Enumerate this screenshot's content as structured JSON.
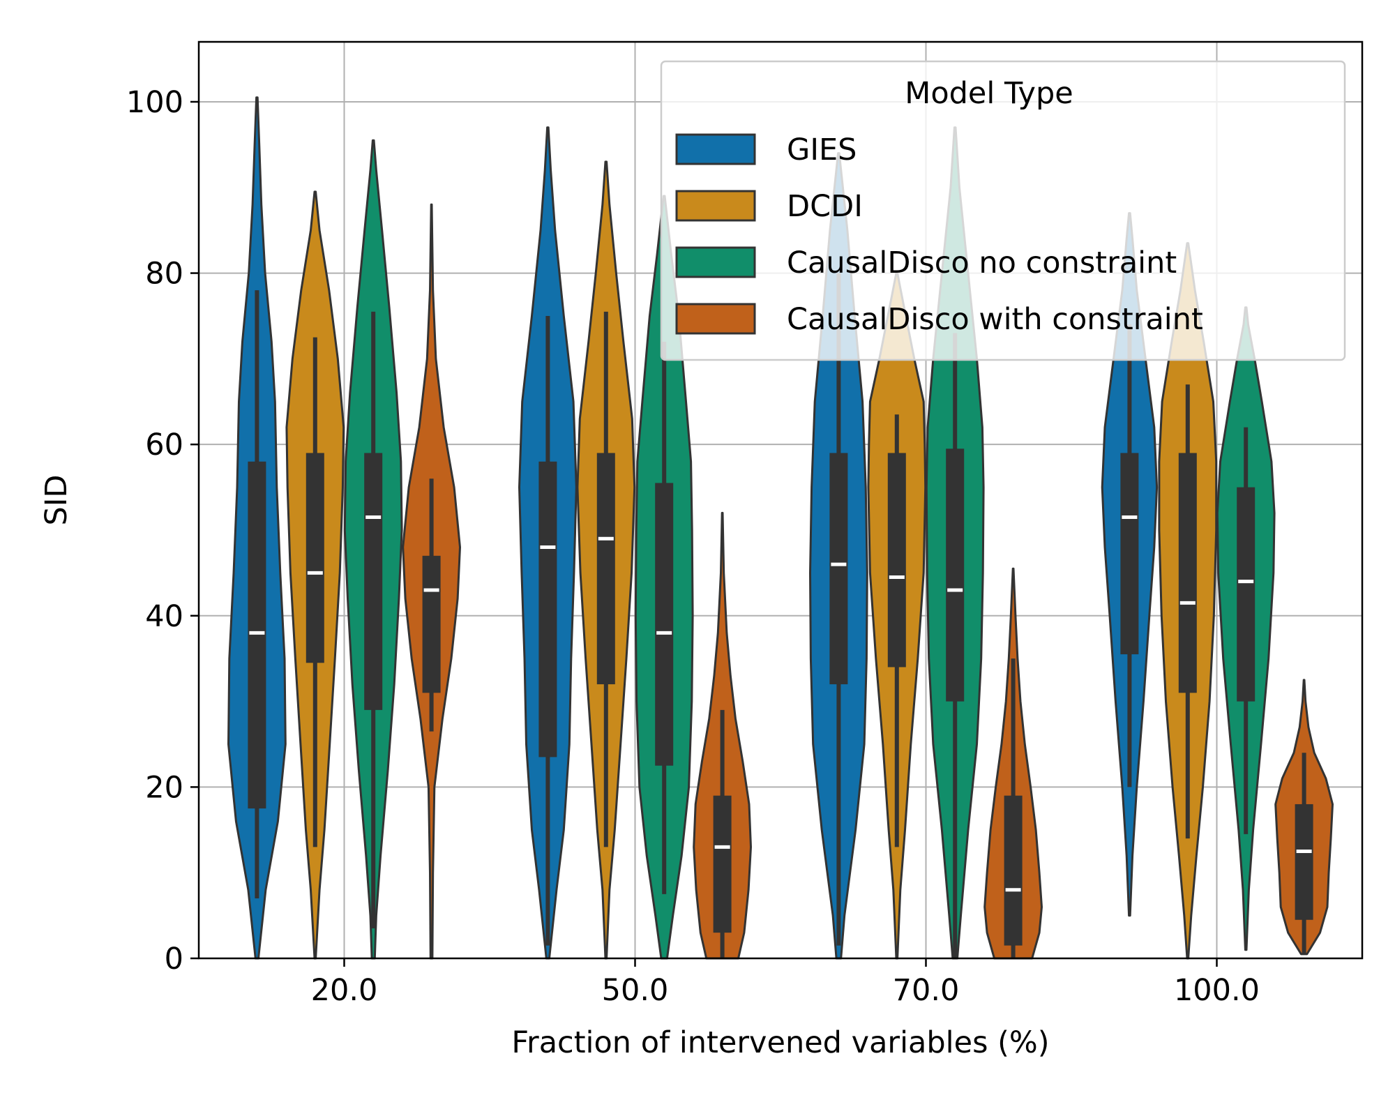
{
  "chart_data": {
    "type": "violin",
    "title": "",
    "xlabel": "Fraction of intervened variables (%)",
    "ylabel": "SID",
    "categories": [
      "20.0",
      "50.0",
      "70.0",
      "100.0"
    ],
    "ylim": [
      0,
      107
    ],
    "yticks": [
      0,
      20,
      40,
      60,
      80,
      100
    ],
    "grid": true,
    "legend": {
      "title": "Model Type",
      "placement": "top-right"
    },
    "series": [
      {
        "name": "GIES",
        "color": "#1170aa",
        "groups": [
          {
            "category": "20.0",
            "q1": 17.5,
            "median": 38,
            "q3": 58,
            "whisker_low": 7,
            "whisker_high": 78,
            "min": 0,
            "max": 100.5,
            "profile": [
              [
                0,
                0.05
              ],
              [
                8,
                0.3
              ],
              [
                16,
                0.72
              ],
              [
                25,
                0.98
              ],
              [
                35,
                0.95
              ],
              [
                45,
                0.8
              ],
              [
                55,
                0.68
              ],
              [
                65,
                0.62
              ],
              [
                72,
                0.5
              ],
              [
                80,
                0.28
              ],
              [
                88,
                0.15
              ],
              [
                95,
                0.08
              ],
              [
                100.5,
                0.02
              ]
            ]
          },
          {
            "category": "50.0",
            "q1": 23.5,
            "median": 48,
            "q3": 58,
            "whisker_low": 1.5,
            "whisker_high": 75,
            "min": 0,
            "max": 97,
            "profile": [
              [
                0,
                0.05
              ],
              [
                8,
                0.3
              ],
              [
                15,
                0.55
              ],
              [
                25,
                0.74
              ],
              [
                35,
                0.8
              ],
              [
                45,
                0.9
              ],
              [
                55,
                0.98
              ],
              [
                65,
                0.88
              ],
              [
                75,
                0.55
              ],
              [
                85,
                0.25
              ],
              [
                92,
                0.1
              ],
              [
                97,
                0.02
              ]
            ]
          },
          {
            "category": "70.0",
            "q1": 32,
            "median": 46,
            "q3": 59,
            "whisker_low": 1.5,
            "whisker_high": 80,
            "min": 0,
            "max": 94,
            "profile": [
              [
                0,
                0.08
              ],
              [
                5,
                0.2
              ],
              [
                15,
                0.58
              ],
              [
                25,
                0.88
              ],
              [
                35,
                0.96
              ],
              [
                45,
                0.98
              ],
              [
                55,
                0.93
              ],
              [
                65,
                0.82
              ],
              [
                75,
                0.55
              ],
              [
                85,
                0.3
              ],
              [
                94,
                0.02
              ]
            ]
          },
          {
            "category": "100.0",
            "q1": 35.5,
            "median": 51.5,
            "q3": 59,
            "whisker_low": 20,
            "whisker_high": 74,
            "min": 5,
            "max": 87,
            "profile": [
              [
                5,
                0.02
              ],
              [
                12,
                0.1
              ],
              [
                20,
                0.25
              ],
              [
                30,
                0.48
              ],
              [
                40,
                0.68
              ],
              [
                48,
                0.85
              ],
              [
                55,
                0.94
              ],
              [
                62,
                0.85
              ],
              [
                70,
                0.55
              ],
              [
                78,
                0.25
              ],
              [
                84,
                0.1
              ],
              [
                87,
                0.02
              ]
            ]
          }
        ]
      },
      {
        "name": "DCDI",
        "color": "#c98a1c",
        "groups": [
          {
            "category": "20.0",
            "q1": 34.5,
            "median": 45,
            "q3": 59,
            "whisker_low": 13,
            "whisker_high": 72.5,
            "min": 0,
            "max": 89.5,
            "profile": [
              [
                0,
                0.02
              ],
              [
                8,
                0.15
              ],
              [
                15,
                0.32
              ],
              [
                25,
                0.5
              ],
              [
                35,
                0.68
              ],
              [
                45,
                0.85
              ],
              [
                55,
                0.95
              ],
              [
                62,
                0.98
              ],
              [
                70,
                0.78
              ],
              [
                78,
                0.48
              ],
              [
                85,
                0.15
              ],
              [
                89.5,
                0.02
              ]
            ]
          },
          {
            "category": "50.0",
            "q1": 32,
            "median": 49,
            "q3": 59,
            "whisker_low": 13,
            "whisker_high": 75.5,
            "min": 0,
            "max": 93,
            "profile": [
              [
                0,
                0.02
              ],
              [
                8,
                0.12
              ],
              [
                15,
                0.3
              ],
              [
                25,
                0.5
              ],
              [
                35,
                0.7
              ],
              [
                45,
                0.88
              ],
              [
                55,
                0.98
              ],
              [
                63,
                0.9
              ],
              [
                72,
                0.6
              ],
              [
                80,
                0.35
              ],
              [
                88,
                0.12
              ],
              [
                93,
                0.02
              ]
            ]
          },
          {
            "category": "70.0",
            "q1": 34,
            "median": 44.5,
            "q3": 59,
            "whisker_low": 13,
            "whisker_high": 63.5,
            "min": 0,
            "max": 80,
            "profile": [
              [
                0,
                0.02
              ],
              [
                8,
                0.12
              ],
              [
                15,
                0.28
              ],
              [
                25,
                0.48
              ],
              [
                35,
                0.72
              ],
              [
                45,
                0.92
              ],
              [
                55,
                0.98
              ],
              [
                60,
                0.96
              ],
              [
                65,
                0.92
              ],
              [
                70,
                0.6
              ],
              [
                76,
                0.25
              ],
              [
                80,
                0.02
              ]
            ]
          },
          {
            "category": "100.0",
            "q1": 31,
            "median": 41.5,
            "q3": 59,
            "whisker_low": 14,
            "whisker_high": 67,
            "min": 0,
            "max": 83.5,
            "profile": [
              [
                0,
                0.02
              ],
              [
                5,
                0.12
              ],
              [
                12,
                0.3
              ],
              [
                20,
                0.52
              ],
              [
                30,
                0.75
              ],
              [
                40,
                0.9
              ],
              [
                50,
                0.98
              ],
              [
                58,
                0.98
              ],
              [
                65,
                0.88
              ],
              [
                72,
                0.55
              ],
              [
                78,
                0.25
              ],
              [
                83.5,
                0.02
              ]
            ]
          }
        ]
      },
      {
        "name": "CausalDisco no constraint",
        "color": "#118e6a",
        "groups": [
          {
            "category": "20.0",
            "q1": 29,
            "median": 51.5,
            "q3": 59,
            "whisker_low": 3.5,
            "whisker_high": 75.5,
            "min": 0,
            "max": 95.5,
            "profile": [
              [
                0,
                0.05
              ],
              [
                5,
                0.1
              ],
              [
                12,
                0.25
              ],
              [
                22,
                0.5
              ],
              [
                32,
                0.72
              ],
              [
                42,
                0.88
              ],
              [
                50,
                0.98
              ],
              [
                58,
                0.95
              ],
              [
                66,
                0.8
              ],
              [
                76,
                0.55
              ],
              [
                85,
                0.3
              ],
              [
                92,
                0.1
              ],
              [
                95.5,
                0.02
              ]
            ]
          },
          {
            "category": "50.0",
            "q1": 22.5,
            "median": 38,
            "q3": 55.5,
            "whisker_low": 7.5,
            "whisker_high": 72,
            "min": 0,
            "max": 89,
            "profile": [
              [
                0,
                0.1
              ],
              [
                5,
                0.3
              ],
              [
                12,
                0.6
              ],
              [
                20,
                0.85
              ],
              [
                30,
                0.95
              ],
              [
                40,
                0.98
              ],
              [
                50,
                0.96
              ],
              [
                58,
                0.92
              ],
              [
                65,
                0.75
              ],
              [
                75,
                0.5
              ],
              [
                82,
                0.25
              ],
              [
                89,
                0.02
              ]
            ]
          },
          {
            "category": "70.0",
            "q1": 30,
            "median": 43,
            "q3": 59.5,
            "whisker_low": 0,
            "whisker_high": 73,
            "min": 0,
            "max": 97,
            "profile": [
              [
                0,
                0.08
              ],
              [
                5,
                0.2
              ],
              [
                15,
                0.45
              ],
              [
                25,
                0.75
              ],
              [
                35,
                0.9
              ],
              [
                45,
                0.96
              ],
              [
                55,
                0.98
              ],
              [
                62,
                0.94
              ],
              [
                70,
                0.75
              ],
              [
                80,
                0.45
              ],
              [
                90,
                0.15
              ],
              [
                97,
                0.02
              ]
            ]
          },
          {
            "category": "100.0",
            "q1": 30,
            "median": 44,
            "q3": 55,
            "whisker_low": 14.5,
            "whisker_high": 62,
            "min": 1,
            "max": 76,
            "profile": [
              [
                1,
                0.02
              ],
              [
                8,
                0.1
              ],
              [
                15,
                0.25
              ],
              [
                25,
                0.52
              ],
              [
                35,
                0.78
              ],
              [
                45,
                0.95
              ],
              [
                52,
                0.98
              ],
              [
                58,
                0.88
              ],
              [
                65,
                0.55
              ],
              [
                70,
                0.3
              ],
              [
                74,
                0.08
              ],
              [
                76,
                0.02
              ]
            ]
          }
        ]
      },
      {
        "name": "CausalDisco with constraint",
        "color": "#c0611b",
        "groups": [
          {
            "category": "20.0",
            "q1": 31,
            "median": 43,
            "q3": 47,
            "whisker_low": 26.5,
            "whisker_high": 56,
            "min": 0,
            "max": 88,
            "profile": [
              [
                0,
                0.03
              ],
              [
                10,
                0.05
              ],
              [
                20,
                0.1
              ],
              [
                28,
                0.38
              ],
              [
                35,
                0.68
              ],
              [
                42,
                0.9
              ],
              [
                48,
                0.98
              ],
              [
                55,
                0.78
              ],
              [
                62,
                0.42
              ],
              [
                70,
                0.15
              ],
              [
                78,
                0.05
              ],
              [
                88,
                0.01
              ]
            ]
          },
          {
            "category": "50.0",
            "q1": 3,
            "median": 13,
            "q3": 19,
            "whisker_low": 0,
            "whisker_high": 29,
            "min": 0,
            "max": 52,
            "profile": [
              [
                0,
                0.55
              ],
              [
                3,
                0.75
              ],
              [
                8,
                0.9
              ],
              [
                13,
                0.98
              ],
              [
                18,
                0.92
              ],
              [
                23,
                0.7
              ],
              [
                28,
                0.45
              ],
              [
                33,
                0.28
              ],
              [
                38,
                0.15
              ],
              [
                45,
                0.05
              ],
              [
                52,
                0.01
              ]
            ]
          },
          {
            "category": "70.0",
            "q1": 1.5,
            "median": 8,
            "q3": 19,
            "whisker_low": 0,
            "whisker_high": 35,
            "min": 0,
            "max": 45.5,
            "profile": [
              [
                0,
                0.65
              ],
              [
                3,
                0.9
              ],
              [
                6,
                0.98
              ],
              [
                10,
                0.9
              ],
              [
                15,
                0.78
              ],
              [
                20,
                0.6
              ],
              [
                25,
                0.4
              ],
              [
                30,
                0.25
              ],
              [
                35,
                0.15
              ],
              [
                40,
                0.08
              ],
              [
                45.5,
                0.01
              ]
            ]
          },
          {
            "category": "100.0",
            "q1": 4.5,
            "median": 12.5,
            "q3": 18,
            "whisker_low": 0.5,
            "whisker_high": 24,
            "min": 0.5,
            "max": 32.5,
            "profile": [
              [
                0.5,
                0.1
              ],
              [
                3,
                0.55
              ],
              [
                6,
                0.8
              ],
              [
                10,
                0.85
              ],
              [
                14,
                0.92
              ],
              [
                18,
                0.98
              ],
              [
                21,
                0.75
              ],
              [
                24,
                0.35
              ],
              [
                27,
                0.15
              ],
              [
                30,
                0.05
              ],
              [
                32.5,
                0.01
              ]
            ]
          }
        ]
      }
    ]
  }
}
